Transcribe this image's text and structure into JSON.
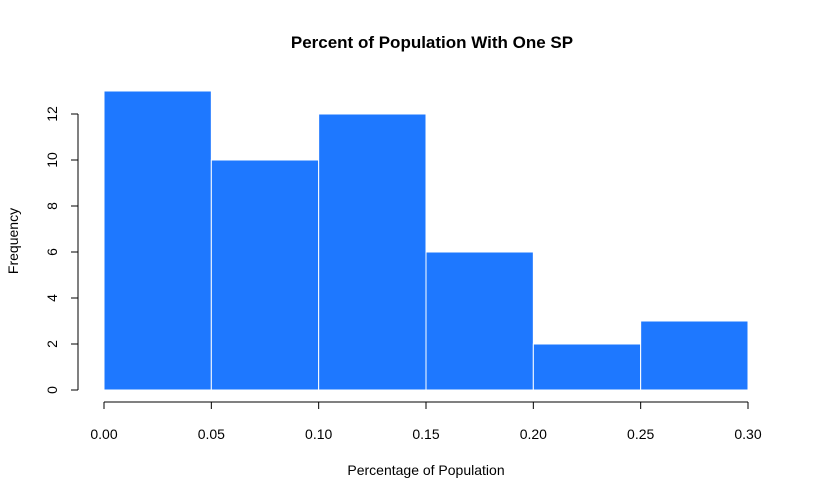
{
  "chart_data": {
    "type": "bar",
    "title": "Percent of Population With One SP",
    "xlabel": "Percentage of Population",
    "ylabel": "Frequency",
    "bins": [
      {
        "start": 0.0,
        "end": 0.05
      },
      {
        "start": 0.05,
        "end": 0.1
      },
      {
        "start": 0.1,
        "end": 0.15
      },
      {
        "start": 0.15,
        "end": 0.2
      },
      {
        "start": 0.2,
        "end": 0.25
      },
      {
        "start": 0.25,
        "end": 0.3
      }
    ],
    "values": [
      13,
      10,
      12,
      6,
      2,
      3
    ],
    "xlim": [
      0,
      0.3
    ],
    "ylim": [
      0,
      13
    ],
    "x_ticks": [
      "0.00",
      "0.05",
      "0.10",
      "0.15",
      "0.20",
      "0.25",
      "0.30"
    ],
    "y_ticks": [
      "0",
      "2",
      "4",
      "6",
      "8",
      "10",
      "12"
    ],
    "grid": false,
    "bar_color": "#1e78ff",
    "bar_border_color": "#ffffff"
  }
}
